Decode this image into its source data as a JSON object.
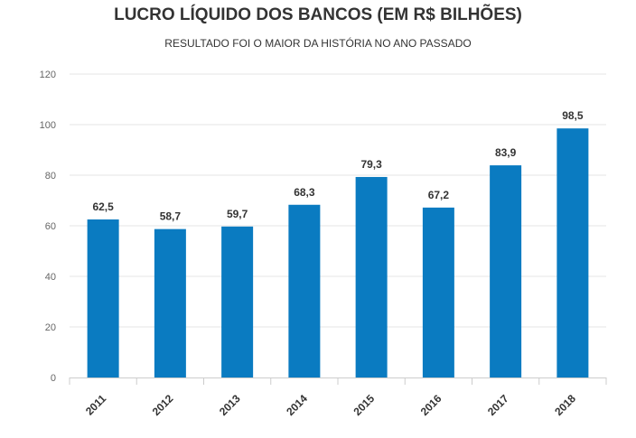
{
  "chart_data": {
    "type": "bar",
    "title": "LUCRO LÍQUIDO DOS BANCOS (EM R$ BILHÕES)",
    "subtitle": "RESULTADO FOI O MAIOR DA HISTÓRIA NO ANO PASSADO",
    "categories": [
      "2011",
      "2012",
      "2013",
      "2014",
      "2015",
      "2016",
      "2017",
      "2018"
    ],
    "values": [
      62.5,
      58.7,
      59.7,
      68.3,
      79.3,
      67.2,
      83.9,
      98.5
    ],
    "data_labels": [
      "62,5",
      "58,7",
      "59,7",
      "68,3",
      "79,3",
      "67,2",
      "83,9",
      "98,5"
    ],
    "yticks": [
      "0",
      "20",
      "40",
      "60",
      "80",
      "100",
      "120"
    ],
    "ylim": [
      0,
      120
    ],
    "xlabel": "",
    "ylabel": "",
    "grid": true,
    "legend": "none",
    "bar_color": "#0a7bc1"
  }
}
